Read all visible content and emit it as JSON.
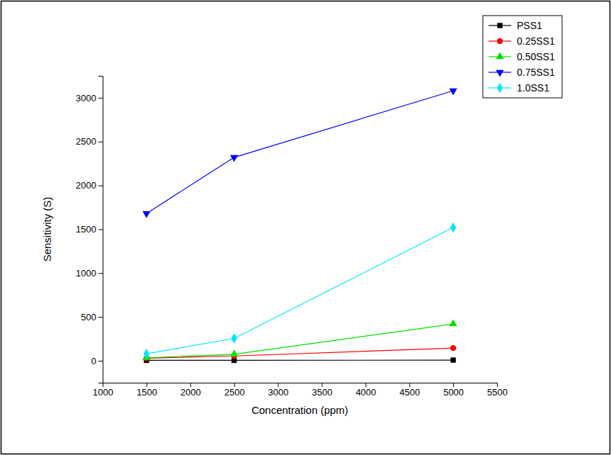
{
  "chart_data": {
    "type": "line",
    "x_label": "Concentration (ppm)",
    "y_label": "Sensitivity (S)",
    "x": [
      1500,
      2500,
      5000
    ],
    "xlim": [
      1000,
      5500
    ],
    "xticks": [
      1000,
      1500,
      2000,
      2500,
      3000,
      3500,
      4000,
      4500,
      5000,
      5500
    ],
    "ylim": [
      -250,
      3250
    ],
    "yticks": [
      0,
      500,
      1000,
      1500,
      2000,
      2500,
      3000
    ],
    "grid": false,
    "legend": "top-right",
    "series": [
      {
        "name": "PSS1",
        "color": "#000000",
        "marker": "square",
        "line_style": "solid",
        "values": [
          5,
          5,
          8
        ]
      },
      {
        "name": "0.25SS1",
        "color": "#ff0000",
        "marker": "circle",
        "line_style": "solid",
        "values": [
          30,
          55,
          145
        ]
      },
      {
        "name": "0.50SS1",
        "color": "#00e000",
        "marker": "triangle-up",
        "line_style": "solid",
        "values": [
          35,
          75,
          420
        ]
      },
      {
        "name": "0.75SS1",
        "color": "#0000ff",
        "marker": "triangle-down",
        "line_style": "solid",
        "values": [
          1680,
          2320,
          3080
        ]
      },
      {
        "name": "1.0SS1",
        "color": "#00e5ff",
        "marker": "diamond",
        "line_style": "solid",
        "values": [
          80,
          255,
          1520
        ]
      }
    ]
  }
}
